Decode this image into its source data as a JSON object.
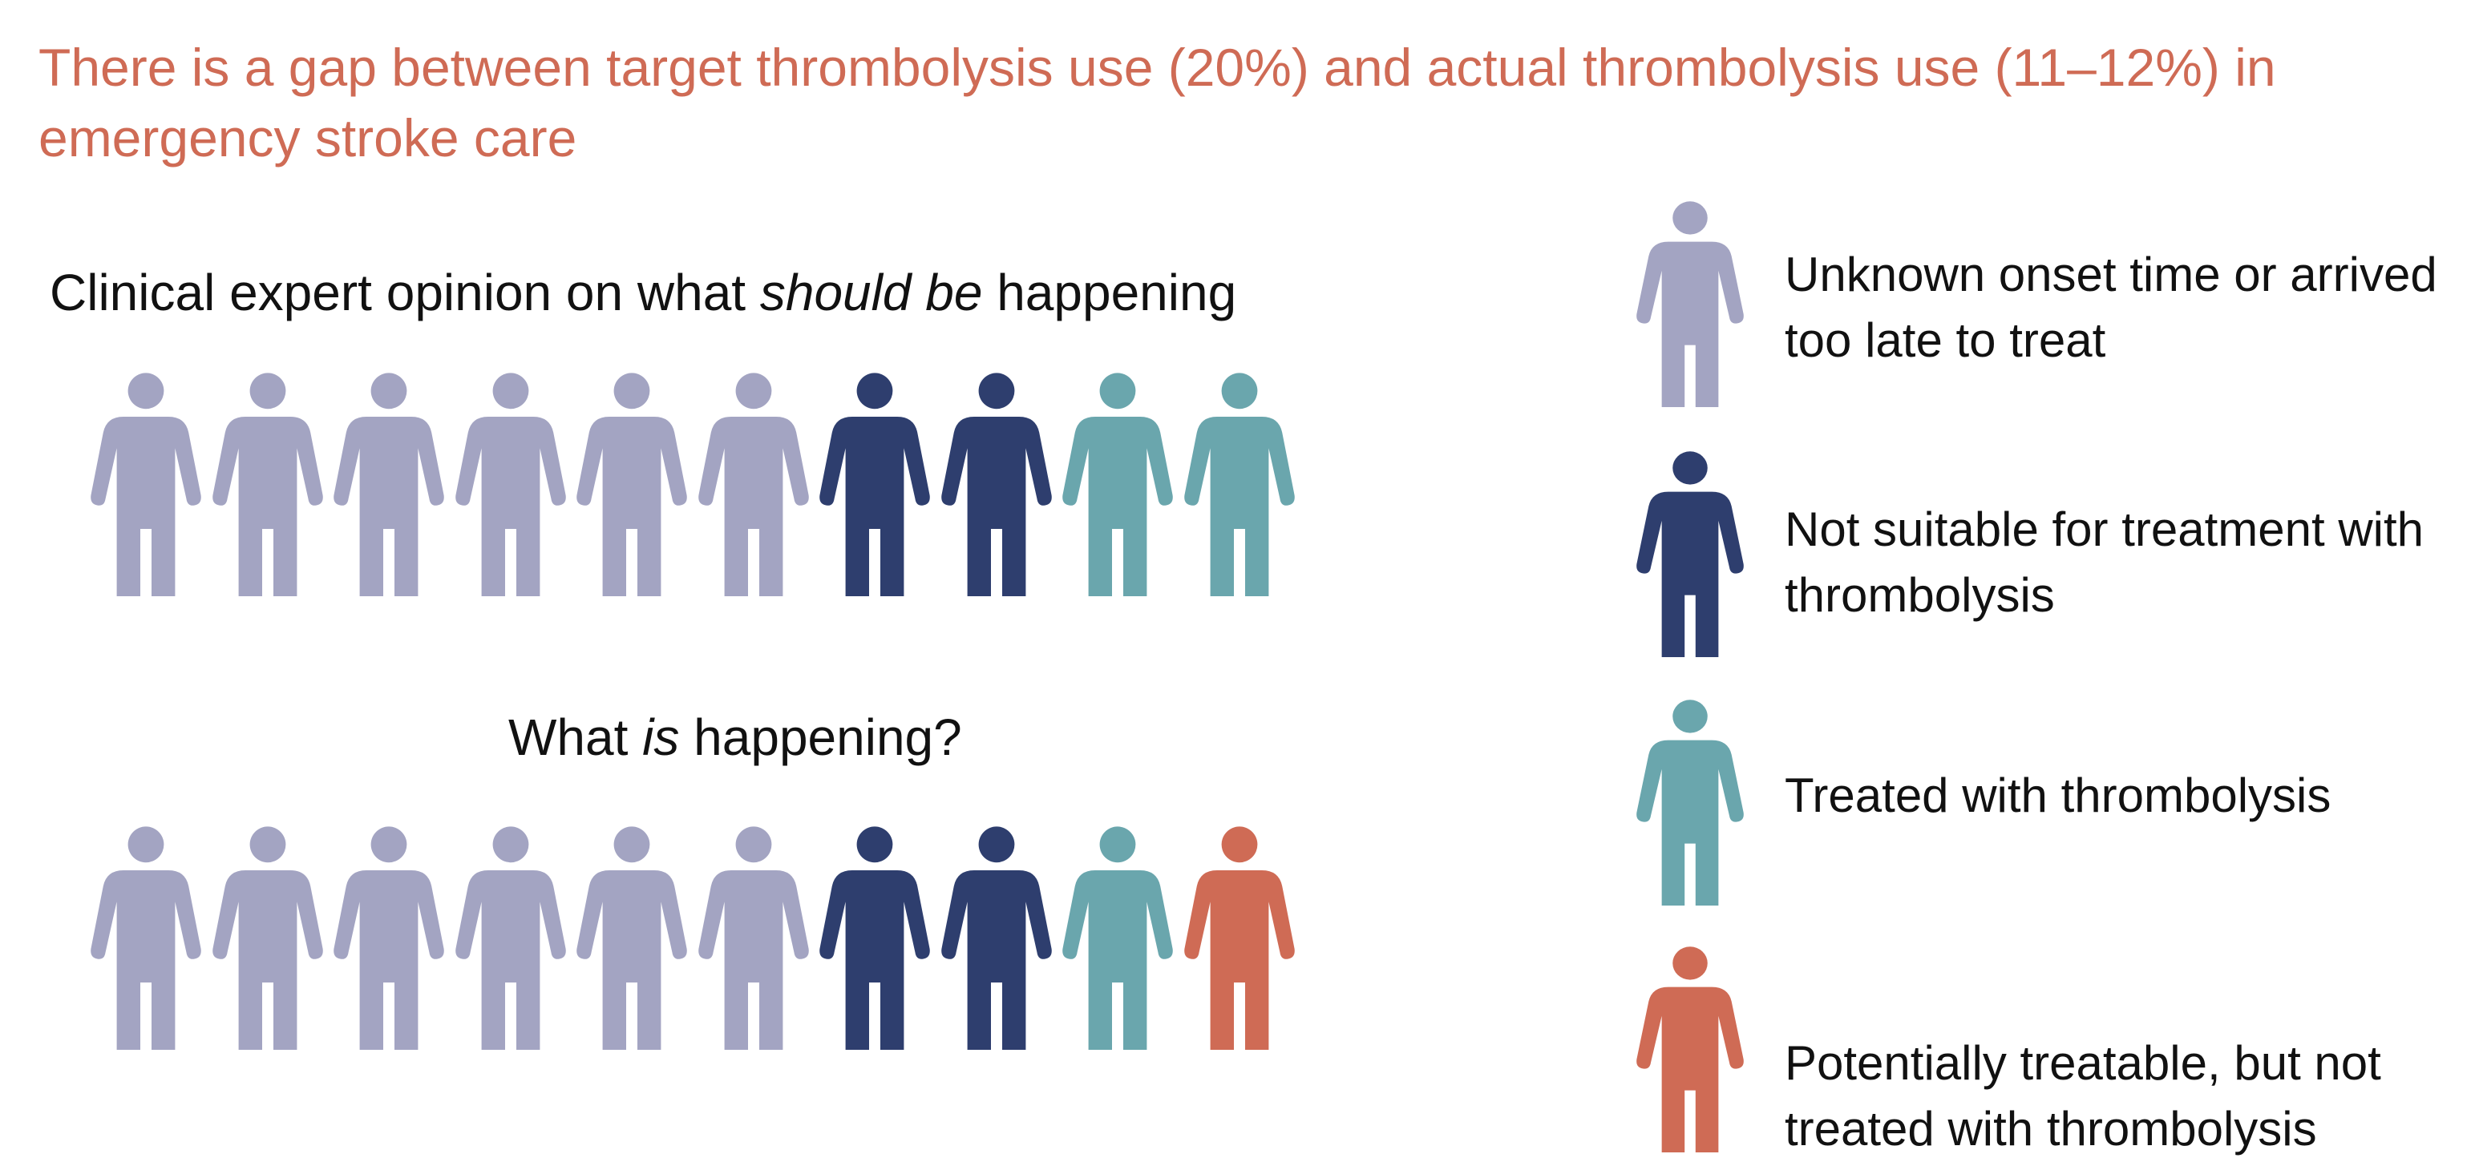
{
  "title": "There is a gap between target thrombolysis use (20%) and actual thrombolysis use (11–12%) in emergency stroke care",
  "rows": [
    {
      "heading_parts": [
        "Clinical expert opinion on what ",
        "should be",
        " happening"
      ],
      "people": [
        "unknown-onset",
        "unknown-onset",
        "unknown-onset",
        "unknown-onset",
        "unknown-onset",
        "unknown-onset",
        "not-suitable",
        "not-suitable",
        "treated",
        "treated"
      ]
    },
    {
      "heading_parts": [
        "What ",
        "is",
        " happening?"
      ],
      "people": [
        "unknown-onset",
        "unknown-onset",
        "unknown-onset",
        "unknown-onset",
        "unknown-onset",
        "unknown-onset",
        "not-suitable",
        "not-suitable",
        "treated",
        "treatable-not-treated"
      ]
    }
  ],
  "legend": [
    {
      "category": "unknown-onset",
      "label": "Unknown onset time or arrived too late to treat",
      "color": "#a3a4c2"
    },
    {
      "category": "not-suitable",
      "label": "Not suitable for treatment with thrombolysis",
      "color": "#2e3e6e"
    },
    {
      "category": "treated",
      "label": "Treated with thrombolysis",
      "color": "#6aa6ad"
    },
    {
      "category": "treatable-not-treated",
      "label": "Potentially treatable, but not treated with thrombolysis",
      "color": "#cf6b55"
    }
  ],
  "icons": {
    "person": "person-icon"
  }
}
